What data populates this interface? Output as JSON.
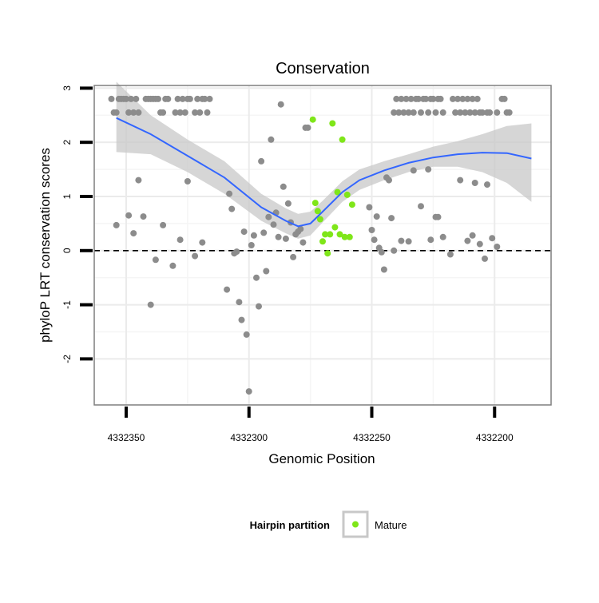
{
  "chart_data": {
    "type": "scatter",
    "title": "Conservation",
    "xlabel": "Genomic Position",
    "ylabel": "phyloP LRT conservation scores",
    "x_reversed": true,
    "xlim": [
      4332363,
      4332177
    ],
    "ylim": [
      -2.85,
      3.05
    ],
    "x_ticks": [
      4332350,
      4332300,
      4332250,
      4332200
    ],
    "x_tick_labels": [
      "4332350",
      "4332300",
      "4332250",
      "4332200"
    ],
    "y_ticks": [
      -2,
      -1,
      0,
      1,
      2,
      3
    ],
    "y_tick_labels": [
      "-2",
      "-1",
      "0",
      "1",
      "2",
      "3"
    ],
    "grid": true,
    "reference_line": {
      "y": 0,
      "style": "dashed"
    },
    "legend": {
      "title": "Hairpin partition",
      "position": "bottom",
      "entries": [
        "Mature"
      ]
    },
    "colors": {
      "background": "#ffffff",
      "grid_major": "#ebebeb",
      "grid_minor": "#f5f5f5",
      "frame": "#7f7f7f",
      "other_points": "#8c8c8c",
      "mature_points": "#7fe619",
      "smooth_line": "#3366ff",
      "confidence_band": "#c8c8c8"
    },
    "series": [
      {
        "name": "",
        "color": "#8c8c8c",
        "points": [
          [
            4332356,
            2.8
          ],
          [
            4332355,
            2.55
          ],
          [
            4332354,
            2.55
          ],
          [
            4332353,
            2.8
          ],
          [
            4332352,
            2.8
          ],
          [
            4332351,
            2.8
          ],
          [
            4332350,
            2.8
          ],
          [
            4332349,
            2.55
          ],
          [
            4332348,
            2.8
          ],
          [
            4332347,
            2.55
          ],
          [
            4332346,
            2.8
          ],
          [
            4332345,
            2.55
          ],
          [
            4332342,
            2.8
          ],
          [
            4332341,
            2.8
          ],
          [
            4332340,
            2.8
          ],
          [
            4332339,
            2.8
          ],
          [
            4332338,
            2.8
          ],
          [
            4332337,
            2.8
          ],
          [
            4332336,
            2.55
          ],
          [
            4332335,
            2.55
          ],
          [
            4332334,
            2.8
          ],
          [
            4332333,
            2.8
          ],
          [
            4332330,
            2.55
          ],
          [
            4332329,
            2.8
          ],
          [
            4332328,
            2.55
          ],
          [
            4332327,
            2.8
          ],
          [
            4332326,
            2.55
          ],
          [
            4332325,
            2.8
          ],
          [
            4332324,
            2.8
          ],
          [
            4332322,
            2.55
          ],
          [
            4332321,
            2.8
          ],
          [
            4332320,
            2.55
          ],
          [
            4332319,
            2.8
          ],
          [
            4332318,
            2.8
          ],
          [
            4332317,
            2.55
          ],
          [
            4332316,
            2.8
          ],
          [
            4332354,
            0.47
          ],
          [
            4332349,
            0.65
          ],
          [
            4332347,
            0.32
          ],
          [
            4332345,
            1.3
          ],
          [
            4332343,
            0.63
          ],
          [
            4332340,
            -1.0
          ],
          [
            4332338,
            -0.17
          ],
          [
            4332335,
            0.47
          ],
          [
            4332331,
            -0.28
          ],
          [
            4332328,
            0.2
          ],
          [
            4332325,
            1.28
          ],
          [
            4332322,
            -0.1
          ],
          [
            4332319,
            0.15
          ],
          [
            4332309,
            -0.72
          ],
          [
            4332308,
            1.05
          ],
          [
            4332307,
            0.77
          ],
          [
            4332306,
            -0.05
          ],
          [
            4332305,
            -0.02
          ],
          [
            4332304,
            -0.95
          ],
          [
            4332303,
            -1.28
          ],
          [
            4332302,
            0.35
          ],
          [
            4332301,
            -1.55
          ],
          [
            4332300,
            -2.6
          ],
          [
            4332299,
            0.1
          ],
          [
            4332298,
            0.28
          ],
          [
            4332297,
            -0.5
          ],
          [
            4332296,
            -1.03
          ],
          [
            4332295,
            1.65
          ],
          [
            4332294,
            0.33
          ],
          [
            4332293,
            -0.38
          ],
          [
            4332292,
            0.62
          ],
          [
            4332291,
            2.05
          ],
          [
            4332290,
            0.48
          ],
          [
            4332289,
            0.7
          ],
          [
            4332288,
            0.25
          ],
          [
            4332287,
            2.7
          ],
          [
            4332286,
            1.18
          ],
          [
            4332285,
            0.22
          ],
          [
            4332284,
            0.87
          ],
          [
            4332283,
            0.52
          ],
          [
            4332282,
            -0.12
          ],
          [
            4332281,
            0.3
          ],
          [
            4332280,
            0.35
          ],
          [
            4332279,
            0.4
          ],
          [
            4332278,
            0.15
          ],
          [
            4332277,
            2.27
          ],
          [
            4332276,
            2.27
          ],
          [
            4332251,
            0.8
          ],
          [
            4332250,
            0.38
          ],
          [
            4332249,
            0.2
          ],
          [
            4332248,
            0.63
          ],
          [
            4332247,
            0.05
          ],
          [
            4332246,
            -0.03
          ],
          [
            4332245,
            -0.35
          ],
          [
            4332244,
            1.35
          ],
          [
            4332243,
            1.3
          ],
          [
            4332242,
            0.6
          ],
          [
            4332241,
            0.0
          ],
          [
            4332241,
            2.55
          ],
          [
            4332240,
            2.8
          ],
          [
            4332239,
            2.55
          ],
          [
            4332238,
            2.8
          ],
          [
            4332237,
            2.55
          ],
          [
            4332236,
            2.8
          ],
          [
            4332235,
            2.55
          ],
          [
            4332234,
            2.8
          ],
          [
            4332233,
            2.55
          ],
          [
            4332232,
            2.8
          ],
          [
            4332231,
            2.8
          ],
          [
            4332230,
            2.55
          ],
          [
            4332229,
            2.8
          ],
          [
            4332228,
            2.8
          ],
          [
            4332227,
            2.55
          ],
          [
            4332226,
            2.8
          ],
          [
            4332225,
            2.8
          ],
          [
            4332224,
            2.55
          ],
          [
            4332223,
            2.8
          ],
          [
            4332222,
            2.8
          ],
          [
            4332221,
            2.55
          ],
          [
            4332238,
            0.18
          ],
          [
            4332235,
            0.17
          ],
          [
            4332233,
            1.48
          ],
          [
            4332230,
            0.82
          ],
          [
            4332227,
            1.5
          ],
          [
            4332226,
            0.2
          ],
          [
            4332224,
            0.62
          ],
          [
            4332223,
            0.62
          ],
          [
            4332221,
            0.25
          ],
          [
            4332217,
            2.8
          ],
          [
            4332216,
            2.55
          ],
          [
            4332215,
            2.8
          ],
          [
            4332214,
            2.55
          ],
          [
            4332213,
            2.8
          ],
          [
            4332212,
            2.55
          ],
          [
            4332211,
            2.8
          ],
          [
            4332210,
            2.55
          ],
          [
            4332209,
            2.8
          ],
          [
            4332208,
            2.55
          ],
          [
            4332207,
            2.8
          ],
          [
            4332206,
            2.55
          ],
          [
            4332205,
            2.55
          ],
          [
            4332203,
            2.55
          ],
          [
            4332202,
            2.55
          ],
          [
            4332199,
            2.55
          ],
          [
            4332197,
            2.8
          ],
          [
            4332196,
            2.8
          ],
          [
            4332195,
            2.55
          ],
          [
            4332194,
            2.55
          ],
          [
            4332218,
            -0.07
          ],
          [
            4332214,
            1.3
          ],
          [
            4332211,
            0.18
          ],
          [
            4332209,
            0.28
          ],
          [
            4332208,
            1.25
          ],
          [
            4332206,
            0.12
          ],
          [
            4332204,
            -0.15
          ],
          [
            4332203,
            1.22
          ],
          [
            4332201,
            0.23
          ],
          [
            4332199,
            0.07
          ]
        ]
      },
      {
        "name": "Mature",
        "color": "#7fe619",
        "points": [
          [
            4332274,
            2.42
          ],
          [
            4332273,
            0.88
          ],
          [
            4332272,
            0.73
          ],
          [
            4332271,
            0.58
          ],
          [
            4332270,
            0.17
          ],
          [
            4332269,
            0.3
          ],
          [
            4332268,
            -0.05
          ],
          [
            4332267,
            0.3
          ],
          [
            4332266,
            2.35
          ],
          [
            4332265,
            0.43
          ],
          [
            4332264,
            1.08
          ],
          [
            4332263,
            0.3
          ],
          [
            4332262,
            2.05
          ],
          [
            4332261,
            0.25
          ],
          [
            4332260,
            1.03
          ],
          [
            4332259,
            0.25
          ],
          [
            4332258,
            0.85
          ]
        ]
      }
    ],
    "smooth": {
      "x": [
        4332354,
        4332340,
        4332325,
        4332310,
        4332295,
        4332285,
        4332280,
        4332275,
        4332270,
        4332262,
        4332255,
        4332245,
        4332235,
        4332225,
        4332215,
        4332205,
        4332195,
        4332185
      ],
      "y": [
        2.45,
        2.15,
        1.75,
        1.35,
        0.8,
        0.55,
        0.45,
        0.5,
        0.72,
        1.08,
        1.3,
        1.48,
        1.62,
        1.72,
        1.78,
        1.81,
        1.8,
        1.7
      ],
      "lower": [
        1.82,
        1.78,
        1.45,
        1.05,
        0.55,
        0.32,
        0.22,
        0.28,
        0.52,
        0.9,
        1.12,
        1.3,
        1.45,
        1.55,
        1.55,
        1.45,
        1.25,
        0.9
      ],
      "upper": [
        3.12,
        2.5,
        2.05,
        1.65,
        1.05,
        0.78,
        0.68,
        0.72,
        0.92,
        1.28,
        1.5,
        1.65,
        1.78,
        1.92,
        2.02,
        2.15,
        2.3,
        2.35
      ]
    }
  }
}
